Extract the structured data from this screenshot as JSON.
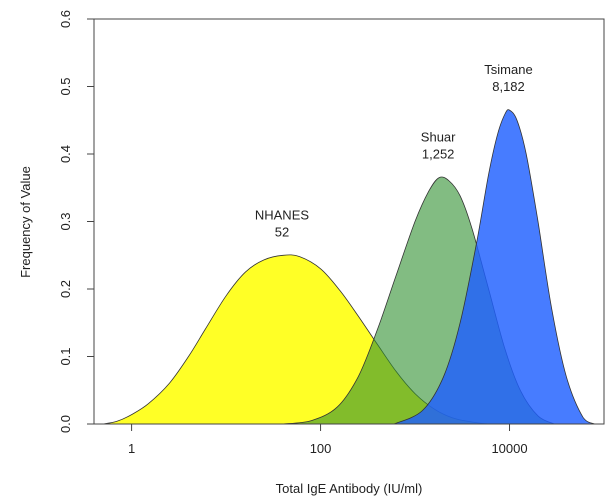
{
  "chart_data": {
    "type": "area",
    "title": "",
    "xlabel": "Total IgE Antibody (IU/ml)",
    "ylabel": "Frequency of Value",
    "x_scale": "log10",
    "xlim": [
      0.4,
      100000
    ],
    "ylim": [
      0,
      0.6
    ],
    "x_ticks": [
      {
        "value": 1,
        "label": "1"
      },
      {
        "value": 100,
        "label": "100"
      },
      {
        "value": 10000,
        "label": "10000"
      }
    ],
    "y_ticks": [
      {
        "value": 0.0,
        "label": "0.0"
      },
      {
        "value": 0.1,
        "label": "0.1"
      },
      {
        "value": 0.2,
        "label": "0.2"
      },
      {
        "value": 0.3,
        "label": "0.3"
      },
      {
        "value": 0.4,
        "label": "0.4"
      },
      {
        "value": 0.5,
        "label": "0.5"
      },
      {
        "value": 0.6,
        "label": "0.6"
      }
    ],
    "grid": false,
    "series": [
      {
        "name": "NHANES",
        "median_label": "52",
        "color": "#ffff00",
        "opacity": 0.85,
        "points": [
          [
            0.5,
            0.0
          ],
          [
            0.7,
            0.004
          ],
          [
            1.0,
            0.014
          ],
          [
            1.5,
            0.03
          ],
          [
            2.5,
            0.06
          ],
          [
            4.0,
            0.1
          ],
          [
            6.0,
            0.14
          ],
          [
            10,
            0.19
          ],
          [
            16,
            0.225
          ],
          [
            25,
            0.243
          ],
          [
            40,
            0.25
          ],
          [
            60,
            0.248
          ],
          [
            100,
            0.23
          ],
          [
            160,
            0.198
          ],
          [
            250,
            0.16
          ],
          [
            400,
            0.118
          ],
          [
            630,
            0.078
          ],
          [
            1000,
            0.045
          ],
          [
            1600,
            0.022
          ],
          [
            2500,
            0.009
          ],
          [
            4000,
            0.003
          ],
          [
            6000,
            0.0
          ]
        ]
      },
      {
        "name": "Shuar",
        "median_label": "1,252",
        "color": "#2f8f2f",
        "opacity": 0.6,
        "points": [
          [
            40,
            0.0
          ],
          [
            80,
            0.005
          ],
          [
            150,
            0.025
          ],
          [
            250,
            0.07
          ],
          [
            400,
            0.14
          ],
          [
            630,
            0.22
          ],
          [
            1000,
            0.3
          ],
          [
            1400,
            0.345
          ],
          [
            1800,
            0.365
          ],
          [
            2300,
            0.36
          ],
          [
            3000,
            0.338
          ],
          [
            4000,
            0.29
          ],
          [
            6000,
            0.2
          ],
          [
            9000,
            0.11
          ],
          [
            13000,
            0.05
          ],
          [
            20000,
            0.012
          ],
          [
            30000,
            0.0
          ]
        ]
      },
      {
        "name": "Tsimane",
        "median_label": "8,182",
        "color": "#1f5fff",
        "opacity": 0.82,
        "points": [
          [
            600,
            0.0
          ],
          [
            1200,
            0.02
          ],
          [
            2000,
            0.07
          ],
          [
            3000,
            0.15
          ],
          [
            4500,
            0.27
          ],
          [
            6000,
            0.37
          ],
          [
            7500,
            0.43
          ],
          [
            9000,
            0.46
          ],
          [
            10000,
            0.465
          ],
          [
            12000,
            0.45
          ],
          [
            15000,
            0.4
          ],
          [
            20000,
            0.3
          ],
          [
            28000,
            0.17
          ],
          [
            40000,
            0.07
          ],
          [
            60000,
            0.01
          ],
          [
            80000,
            0.0
          ]
        ]
      }
    ]
  }
}
